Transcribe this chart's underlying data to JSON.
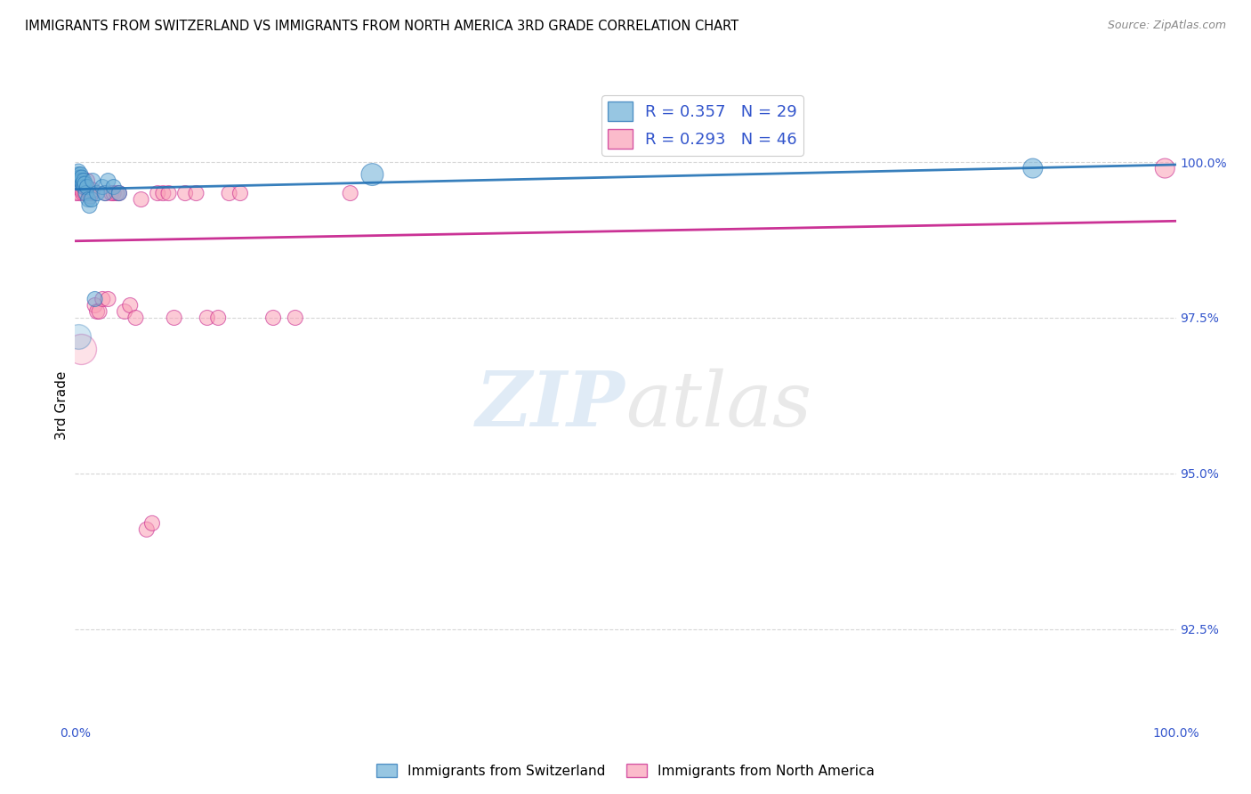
{
  "title": "IMMIGRANTS FROM SWITZERLAND VS IMMIGRANTS FROM NORTH AMERICA 3RD GRADE CORRELATION CHART",
  "source": "Source: ZipAtlas.com",
  "legend_label1": "Immigrants from Switzerland",
  "legend_label2": "Immigrants from North America",
  "R1": 0.357,
  "N1": 29,
  "R2": 0.293,
  "N2": 46,
  "color1": "#6baed6",
  "color2": "#fa9fb5",
  "trendline1_color": "#2171b5",
  "trendline2_color": "#c51b8a",
  "swiss_x": [
    0.002,
    0.003,
    0.003,
    0.003,
    0.004,
    0.004,
    0.005,
    0.005,
    0.006,
    0.006,
    0.007,
    0.008,
    0.008,
    0.009,
    0.01,
    0.011,
    0.012,
    0.013,
    0.015,
    0.016,
    0.018,
    0.02,
    0.025,
    0.027,
    0.03,
    0.035,
    0.04,
    0.27,
    0.87
  ],
  "swiss_y": [
    99.7,
    99.75,
    99.8,
    99.85,
    99.7,
    99.75,
    99.7,
    99.8,
    99.7,
    99.75,
    99.65,
    99.6,
    99.7,
    99.65,
    99.5,
    99.6,
    99.4,
    99.3,
    99.4,
    99.7,
    97.8,
    99.5,
    99.6,
    99.5,
    99.7,
    99.6,
    99.5,
    99.8,
    99.9
  ],
  "swiss_size": [
    150,
    150,
    150,
    150,
    200,
    150,
    150,
    150,
    150,
    150,
    150,
    150,
    150,
    150,
    150,
    150,
    150,
    150,
    150,
    150,
    150,
    150,
    150,
    150,
    150,
    150,
    150,
    320,
    250
  ],
  "na_x": [
    0.001,
    0.002,
    0.003,
    0.004,
    0.005,
    0.006,
    0.007,
    0.008,
    0.009,
    0.01,
    0.011,
    0.012,
    0.013,
    0.014,
    0.015,
    0.016,
    0.018,
    0.02,
    0.022,
    0.025,
    0.028,
    0.03,
    0.033,
    0.035,
    0.038,
    0.04,
    0.045,
    0.05,
    0.055,
    0.06,
    0.065,
    0.07,
    0.075,
    0.08,
    0.085,
    0.09,
    0.1,
    0.11,
    0.12,
    0.13,
    0.14,
    0.15,
    0.18,
    0.2,
    0.25,
    0.99
  ],
  "na_y": [
    99.5,
    99.6,
    99.65,
    99.5,
    99.6,
    99.55,
    99.5,
    99.65,
    99.5,
    99.6,
    99.7,
    99.55,
    99.5,
    99.45,
    99.5,
    99.55,
    97.7,
    97.6,
    97.6,
    97.8,
    99.5,
    97.8,
    99.5,
    99.5,
    99.5,
    99.5,
    97.6,
    97.7,
    97.5,
    99.4,
    94.1,
    94.2,
    99.5,
    99.5,
    99.5,
    97.5,
    99.5,
    99.5,
    97.5,
    97.5,
    99.5,
    99.5,
    97.5,
    97.5,
    99.5,
    99.9
  ],
  "na_size": [
    150,
    150,
    150,
    150,
    150,
    150,
    150,
    150,
    150,
    150,
    150,
    150,
    150,
    150,
    150,
    150,
    150,
    150,
    150,
    150,
    150,
    150,
    150,
    150,
    150,
    150,
    150,
    150,
    150,
    150,
    150,
    150,
    150,
    150,
    150,
    150,
    150,
    150,
    150,
    150,
    150,
    150,
    150,
    150,
    150,
    250
  ],
  "big_swiss_x": [
    0.003
  ],
  "big_swiss_y": [
    97.2
  ],
  "big_na_x": [
    0.005
  ],
  "big_na_y": [
    97.0
  ],
  "xlim": [
    0.0,
    1.0
  ],
  "ylim": [
    91.0,
    101.2
  ],
  "yticks": [
    92.5,
    95.0,
    97.5,
    100.0
  ],
  "xticks": [
    0.0,
    0.1,
    0.2,
    0.3,
    0.4,
    0.5,
    0.6,
    0.7,
    0.8,
    0.9,
    1.0
  ],
  "watermark_zip": "ZIP",
  "watermark_atlas": "atlas",
  "background_color": "#ffffff"
}
